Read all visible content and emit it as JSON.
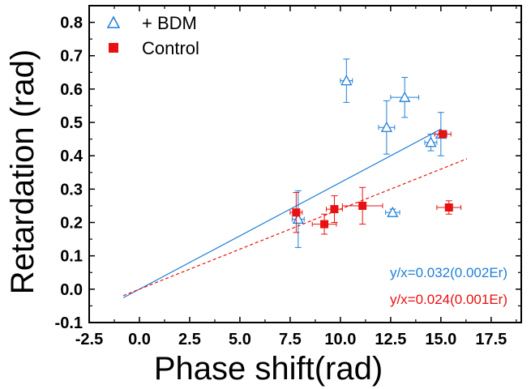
{
  "chart_data": {
    "type": "scatter",
    "title": "",
    "xlabel": "Phase shift(rad)",
    "ylabel": "Retardation (rad)",
    "xlim": [
      -2.5,
      19
    ],
    "ylim": [
      -0.1,
      0.85
    ],
    "xticks": [
      "-2.5",
      "0.0",
      "2.5",
      "5.0",
      "7.5",
      "10.0",
      "12.5",
      "15.0",
      "17.5"
    ],
    "yticks": [
      "-0.1",
      "0.0",
      "0.1",
      "0.2",
      "0.3",
      "0.4",
      "0.5",
      "0.6",
      "0.7",
      "0.8"
    ],
    "grid": false,
    "legend_position": "top-left",
    "series": [
      {
        "name": "+ BDM",
        "marker": "open-triangle",
        "color": "#1f7fd8",
        "points": [
          {
            "x": 7.9,
            "y": 0.21,
            "xerr": 0.3,
            "yerr": 0.085
          },
          {
            "x": 10.3,
            "y": 0.625,
            "xerr": 0.3,
            "yerr": 0.065
          },
          {
            "x": 12.3,
            "y": 0.485,
            "xerr": 0.4,
            "yerr": 0.08
          },
          {
            "x": 12.6,
            "y": 0.23,
            "xerr": 0.35,
            "yerr": 0.01
          },
          {
            "x": 13.2,
            "y": 0.575,
            "xerr": 0.7,
            "yerr": 0.06
          },
          {
            "x": 14.5,
            "y": 0.44,
            "xerr": 0.3,
            "yerr": 0.025
          },
          {
            "x": 15.0,
            "y": 0.465,
            "xerr": 0.3,
            "yerr": 0.065
          }
        ],
        "fit": {
          "slope": 0.032,
          "x_range": [
            -0.8,
            15.0
          ],
          "style": "solid"
        }
      },
      {
        "name": "Control",
        "marker": "filled-square",
        "color": "#e81010",
        "points": [
          {
            "x": 7.8,
            "y": 0.23,
            "xerr": 0.3,
            "yerr": 0.06
          },
          {
            "x": 9.2,
            "y": 0.195,
            "xerr": 0.6,
            "yerr": 0.03
          },
          {
            "x": 9.7,
            "y": 0.24,
            "xerr": 0.4,
            "yerr": 0.04
          },
          {
            "x": 11.1,
            "y": 0.25,
            "xerr": 1.0,
            "yerr": 0.055
          },
          {
            "x": 15.1,
            "y": 0.465,
            "xerr": 0.4,
            "yerr": 0.0
          },
          {
            "x": 15.4,
            "y": 0.245,
            "xerr": 0.6,
            "yerr": 0.02
          }
        ],
        "fit": {
          "slope": 0.024,
          "x_range": [
            -0.8,
            16.3
          ],
          "style": "dashed"
        }
      }
    ],
    "annotations": [
      {
        "text": "y/x=0.032(0.002Er)",
        "color": "#1f7fd8"
      },
      {
        "text": "y/x=0.024(0.001Er)",
        "color": "#e81010"
      }
    ]
  }
}
